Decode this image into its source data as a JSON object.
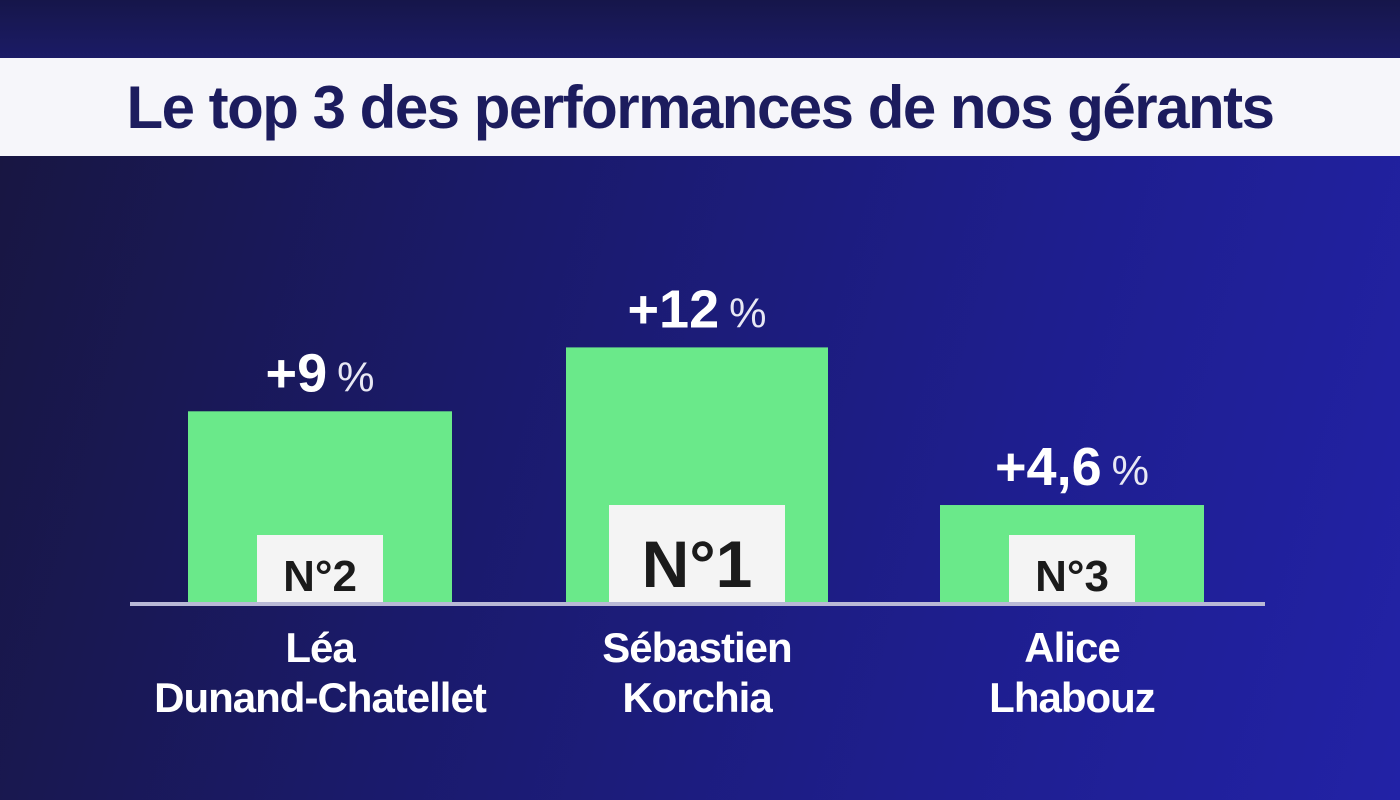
{
  "title": "Le top 3 des performances de nos gérants",
  "chart_data": {
    "type": "bar",
    "title": "Le top 3 des performances de nos gérants",
    "categories": [
      "Léa Dunand-Chatellet",
      "Sébastien Korchia",
      "Alice Lhabouz"
    ],
    "category_lines": [
      [
        "Léa",
        "Dunand-Chatellet"
      ],
      [
        "Sébastien",
        "Korchia"
      ],
      [
        "Alice",
        "Lhabouz"
      ]
    ],
    "values": [
      9,
      12,
      4.6
    ],
    "value_labels": [
      "+9",
      "+12",
      "+4,6"
    ],
    "unit": "%",
    "ranks": [
      "N°2",
      "N°1",
      "N°3"
    ],
    "ylim": [
      0,
      15
    ],
    "grid": false,
    "colors": {
      "bar": "#6ae98a",
      "rank_box": "#f4f4f4",
      "title_background": "#f6f6fa",
      "title_text": "#1c1c5e"
    }
  }
}
